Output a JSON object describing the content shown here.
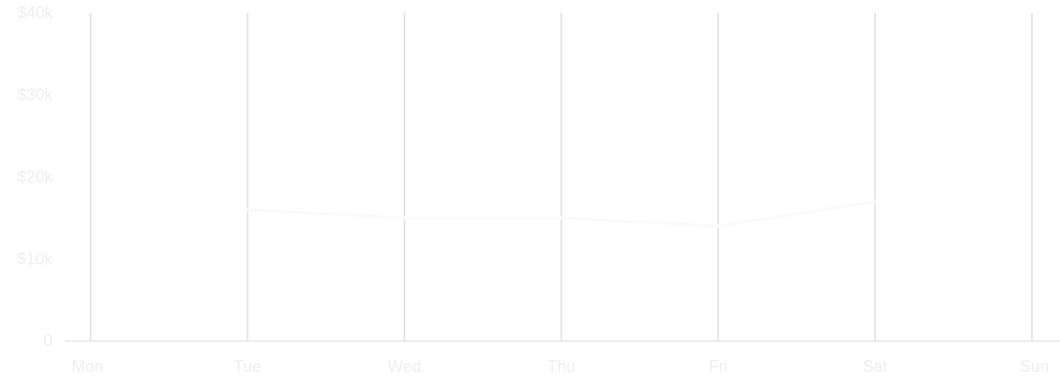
{
  "chart_data": {
    "type": "line",
    "title": "",
    "xlabel": "",
    "ylabel": "",
    "categories": [
      "Mon",
      "Tue",
      "Wed",
      "Thu",
      "Fri",
      "Sat",
      "Sun"
    ],
    "y_ticks": [
      "0",
      "$10k",
      "$20k",
      "$30k",
      "$40k"
    ],
    "y_tick_values": [
      0,
      10000,
      20000,
      30000,
      40000
    ],
    "ylim": [
      0,
      40000
    ],
    "grid": "vertical",
    "legend": "none",
    "series": [
      {
        "values": [
          null,
          16000,
          15000,
          15000,
          14000,
          17000,
          null
        ]
      }
    ],
    "colors": {
      "grid": "#dedede",
      "axis": "#e6e6e6",
      "tick_text": "#eeeeee",
      "series": "#fafafa"
    }
  }
}
